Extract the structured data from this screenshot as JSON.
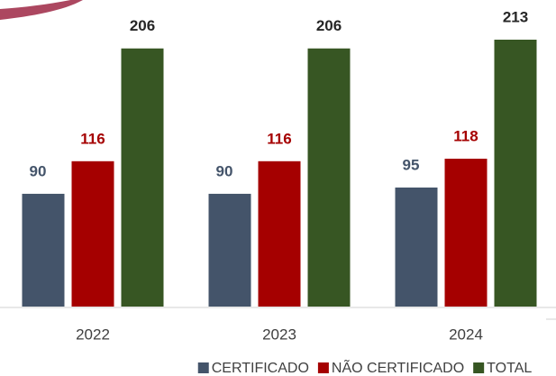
{
  "chart_data": {
    "type": "bar",
    "categories": [
      "2022",
      "2023",
      "2024"
    ],
    "series": [
      {
        "name": "CERTIFICADO",
        "color": "#44546a",
        "label_color": "#44546a",
        "values": [
          90,
          90,
          95
        ]
      },
      {
        "name": "NÃO CERTIFICADO",
        "color": "#a50000",
        "label_color": "#a50000",
        "values": [
          116,
          116,
          118
        ]
      },
      {
        "name": "TOTAL",
        "color": "#375623",
        "label_color": "#262626",
        "values": [
          206,
          206,
          213
        ]
      }
    ],
    "legend": "bottom"
  }
}
